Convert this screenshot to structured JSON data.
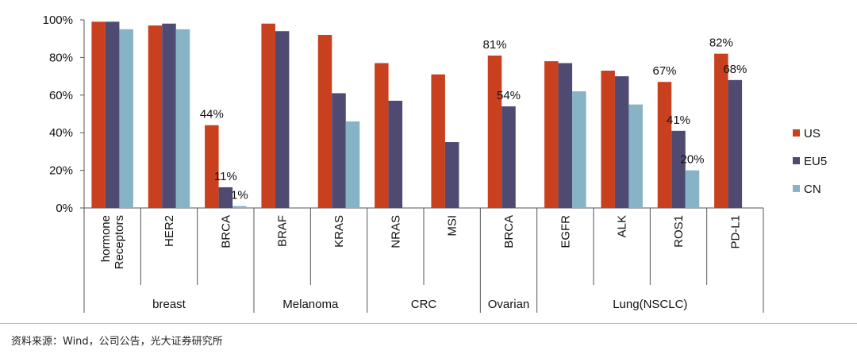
{
  "chart_data": {
    "type": "bar",
    "ylim": [
      0,
      100
    ],
    "yticks": [
      "0%",
      "20%",
      "40%",
      "60%",
      "80%",
      "100%"
    ],
    "grid": false,
    "legend_position": "right",
    "categories": [
      {
        "lines": [
          "hormone",
          "Receptors"
        ]
      },
      {
        "lines": [
          "HER2"
        ]
      },
      {
        "lines": [
          "BRCA"
        ]
      },
      {
        "lines": [
          "BRAF"
        ]
      },
      {
        "lines": [
          "KRAS"
        ]
      },
      {
        "lines": [
          "NRAS"
        ]
      },
      {
        "lines": [
          "MSI"
        ]
      },
      {
        "lines": [
          "BRCA"
        ]
      },
      {
        "lines": [
          "EGFR"
        ]
      },
      {
        "lines": [
          "ALK"
        ]
      },
      {
        "lines": [
          "ROS1"
        ]
      },
      {
        "lines": [
          "PD-L1"
        ]
      }
    ],
    "groups": [
      {
        "label": "breast",
        "start": 0,
        "end": 2
      },
      {
        "label": "Melanoma",
        "start": 3,
        "end": 4
      },
      {
        "label": "CRC",
        "start": 5,
        "end": 6
      },
      {
        "label": "Ovarian",
        "start": 7,
        "end": 7
      },
      {
        "label": "Lung(NSCLC)",
        "start": 8,
        "end": 11
      }
    ],
    "series": [
      {
        "name": "US",
        "color": "#c9401f",
        "values": [
          99,
          97,
          44,
          98,
          92,
          77,
          71,
          81,
          78,
          73,
          67,
          82
        ]
      },
      {
        "name": "EU5",
        "color": "#4f4a72",
        "values": [
          99,
          98,
          11,
          94,
          61,
          57,
          35,
          54,
          77,
          70,
          41,
          68
        ]
      },
      {
        "name": "CN",
        "color": "#86b3c5",
        "values": [
          95,
          95,
          1,
          null,
          46,
          null,
          null,
          null,
          62,
          55,
          20,
          null
        ]
      }
    ],
    "data_labels": [
      {
        "series": 0,
        "category": 2,
        "text": "44%"
      },
      {
        "series": 1,
        "category": 2,
        "text": "11%"
      },
      {
        "series": 2,
        "category": 2,
        "text": "1%"
      },
      {
        "series": 0,
        "category": 7,
        "text": "81%"
      },
      {
        "series": 1,
        "category": 7,
        "text": "54%"
      },
      {
        "series": 0,
        "category": 10,
        "text": "67%"
      },
      {
        "series": 1,
        "category": 10,
        "text": "41%"
      },
      {
        "series": 2,
        "category": 10,
        "text": "20%"
      },
      {
        "series": 0,
        "category": 11,
        "text": "82%"
      },
      {
        "series": 1,
        "category": 11,
        "text": "68%"
      }
    ]
  },
  "source_note": "资料来源：Wind，公司公告，光大证券研究所"
}
